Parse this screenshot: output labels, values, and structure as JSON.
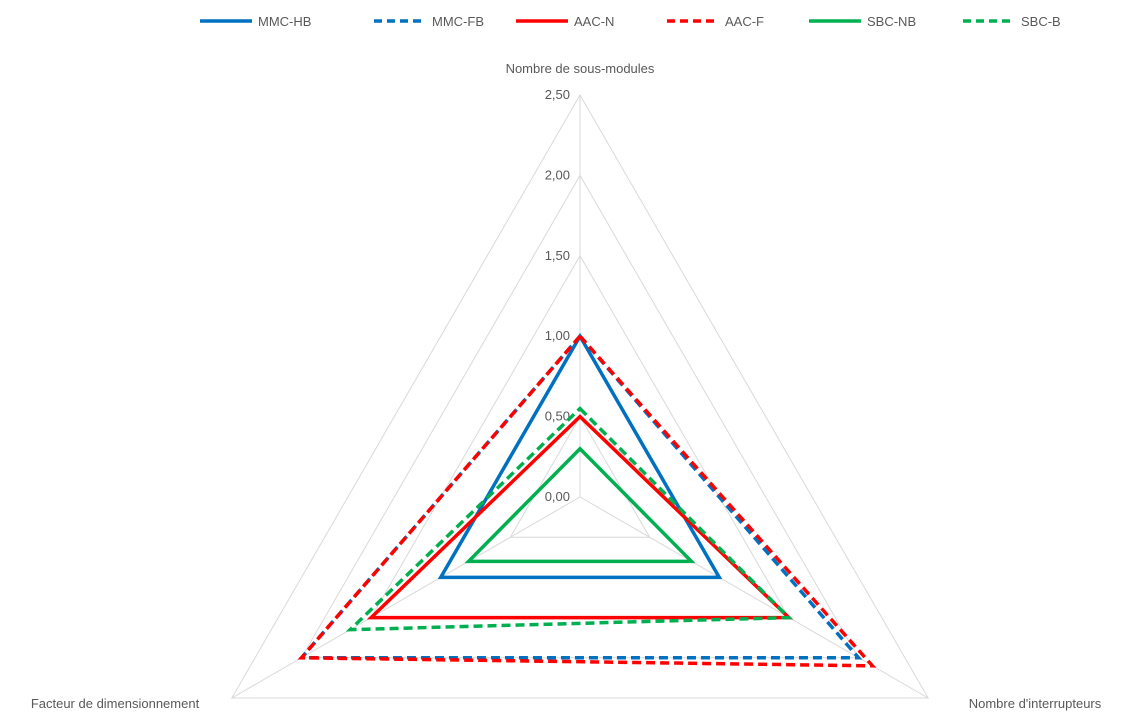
{
  "chart_data": {
    "type": "radar",
    "title": "",
    "axes": [
      "Nombre de sous-modules",
      "Nombre d'interrupteurs",
      "Facteur de dimensionnement"
    ],
    "rlim": [
      0,
      2.5
    ],
    "ticks": [
      "0,00",
      "0,50",
      "1,00",
      "1,50",
      "2,00",
      "2,50"
    ],
    "tick_values": [
      0,
      0.5,
      1.0,
      1.5,
      2.0,
      2.5
    ],
    "grid": true,
    "legend_position": "top",
    "series": [
      {
        "name": "MMC-HB",
        "values": [
          1.0,
          1.0,
          1.0
        ],
        "color": "#0070C0",
        "dash": "solid"
      },
      {
        "name": "MMC-FB",
        "values": [
          1.0,
          2.0,
          2.0
        ],
        "color": "#0070C0",
        "dash": "dashed"
      },
      {
        "name": "AAC-N",
        "values": [
          0.5,
          1.5,
          1.5
        ],
        "color": "#FF0000",
        "dash": "solid"
      },
      {
        "name": "AAC-F",
        "values": [
          1.0,
          2.1,
          2.0
        ],
        "color": "#FF0000",
        "dash": "dashed"
      },
      {
        "name": "SBC-NB",
        "values": [
          0.3,
          0.8,
          0.8
        ],
        "color": "#00B050",
        "dash": "solid"
      },
      {
        "name": "SBC-B",
        "values": [
          0.55,
          1.5,
          1.65
        ],
        "color": "#00B050",
        "dash": "dashed"
      }
    ]
  }
}
